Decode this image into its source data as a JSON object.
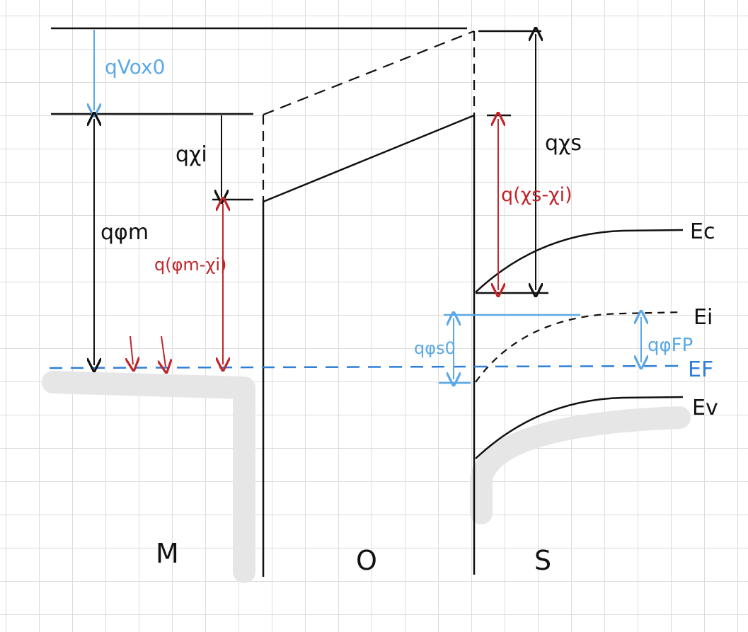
{
  "colors": {
    "ink": "#111111",
    "blue": "#5aa9e6",
    "fermi_blue": "#2f7fd6",
    "red": "#c0262c",
    "highlight": "#e6e6e6",
    "grid": "#dcdcdc"
  },
  "labels": {
    "q_vox0": "qVox0",
    "q_phi_m": "qφm",
    "q_chi_i": "qχi",
    "q_phi_m_minus_chi_i": "q(φm-χi)",
    "q_chi_s": "qχs",
    "q_chi_s_minus_chi_i": "q(χs-χi)",
    "q_phi_s0": "qφs0",
    "q_phi_fp": "qφFP",
    "Ec": "Ec",
    "Ei": "Ei",
    "EF": "EF",
    "Ev": "Ev",
    "region_m": "M",
    "region_o": "O",
    "region_s": "S"
  }
}
